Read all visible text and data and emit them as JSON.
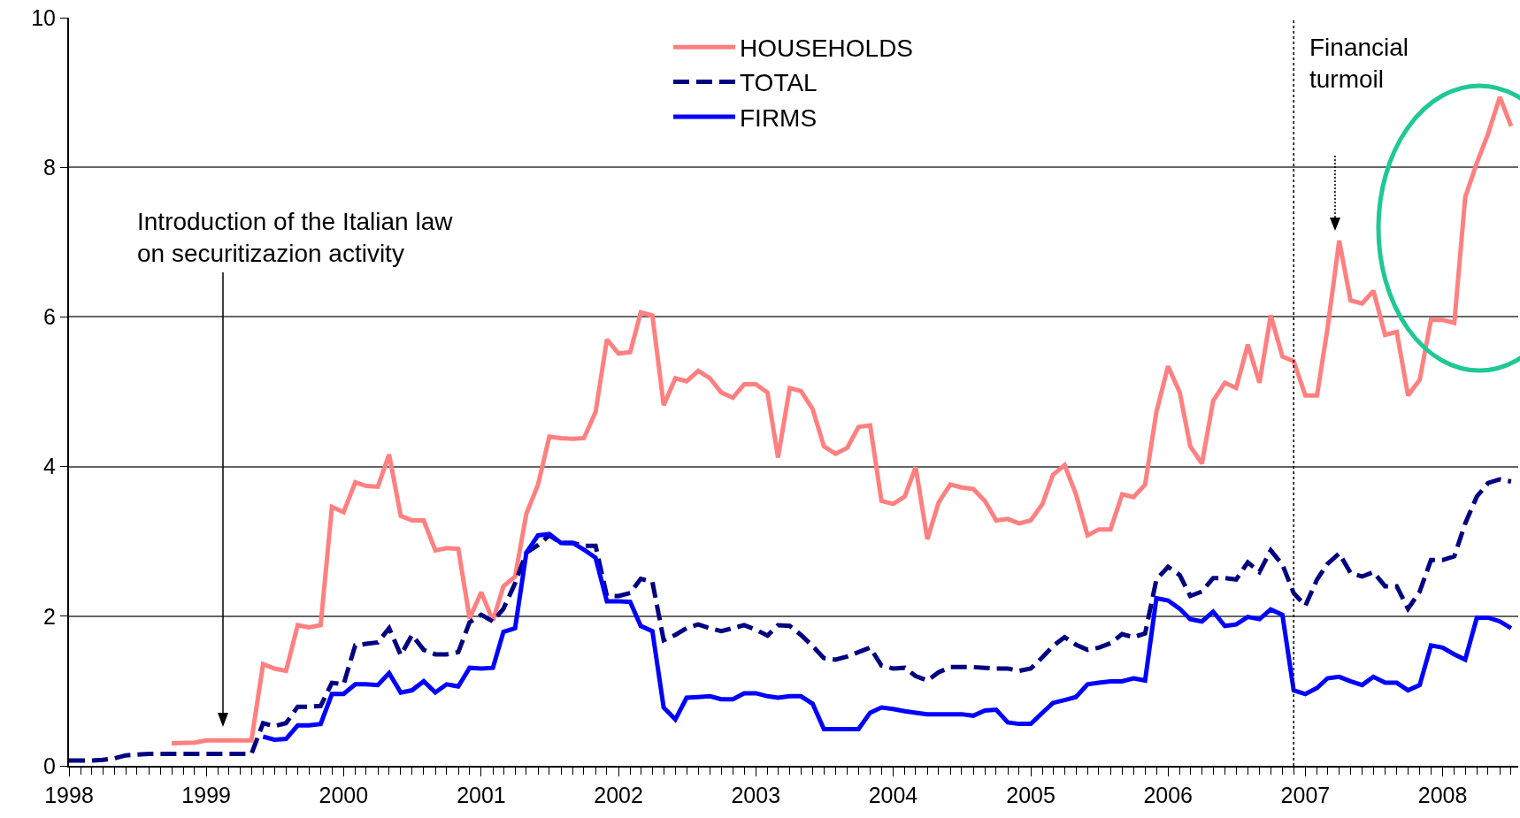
{
  "chart_data": {
    "type": "line",
    "series": [
      {
        "name": "HOUSEHOLDS",
        "color": "#ff8080",
        "line_style": "solid",
        "x": [
          "1998-10",
          "1998-12",
          "1999-01",
          "1999-02",
          "1999-03",
          "1999-04",
          "1999-05",
          "1999-06",
          "1999-07",
          "1999-08",
          "1999-09",
          "1999-10",
          "1999-11",
          "1999-12",
          "2000-01",
          "2000-02",
          "2000-03",
          "2000-04",
          "2000-05",
          "2000-06",
          "2000-07",
          "2000-08",
          "2000-09",
          "2000-10",
          "2000-11",
          "2000-12",
          "2001-01",
          "2001-02",
          "2001-03",
          "2001-04",
          "2001-05",
          "2001-06",
          "2001-07",
          "2001-08",
          "2001-09",
          "2001-10",
          "2001-11",
          "2001-12",
          "2002-01",
          "2002-02",
          "2002-03",
          "2002-04",
          "2002-05",
          "2002-06",
          "2002-07",
          "2002-08",
          "2002-09",
          "2002-10",
          "2002-11",
          "2002-12",
          "2003-01",
          "2003-02",
          "2003-03",
          "2003-04",
          "2003-05",
          "2003-06",
          "2003-07",
          "2003-08",
          "2003-09",
          "2003-10",
          "2003-11",
          "2003-12",
          "2004-01",
          "2004-02",
          "2004-03",
          "2004-04",
          "2004-05",
          "2004-06",
          "2004-07",
          "2004-08",
          "2004-09",
          "2004-10",
          "2004-11",
          "2004-12",
          "2005-01",
          "2005-02",
          "2005-03",
          "2005-04",
          "2005-05",
          "2005-06",
          "2005-07",
          "2005-08",
          "2005-09",
          "2005-10",
          "2005-11",
          "2005-12",
          "2006-01",
          "2006-02",
          "2006-03",
          "2006-04",
          "2006-05",
          "2006-06",
          "2006-07",
          "2006-08",
          "2006-09",
          "2006-10",
          "2006-11",
          "2006-12",
          "2007-01",
          "2007-02",
          "2007-03",
          "2007-04",
          "2007-05",
          "2007-06",
          "2007-07",
          "2007-08",
          "2007-09",
          "2007-10",
          "2007-11",
          "2007-12",
          "2008-01",
          "2008-02",
          "2008-03",
          "2008-04",
          "2008-05",
          "2008-06",
          "2008-07"
        ],
        "values": [
          0.3,
          0.31,
          0.34,
          0.34,
          0.34,
          0.34,
          0.34,
          1.36,
          1.3,
          1.27,
          1.88,
          1.85,
          1.88,
          3.46,
          3.39,
          3.79,
          3.74,
          3.73,
          4.16,
          3.34,
          3.28,
          3.28,
          2.88,
          2.91,
          2.9,
          1.97,
          2.32,
          1.94,
          2.4,
          2.53,
          3.37,
          3.76,
          4.4,
          4.38,
          4.37,
          4.38,
          4.73,
          5.7,
          5.51,
          5.53,
          6.06,
          6.02,
          4.82,
          5.18,
          5.14,
          5.28,
          5.18,
          4.99,
          4.92,
          5.1,
          5.1,
          4.99,
          4.12,
          5.05,
          5.01,
          4.77,
          4.27,
          4.17,
          4.25,
          4.53,
          4.55,
          3.54,
          3.5,
          3.6,
          3.99,
          3.03,
          3.52,
          3.76,
          3.72,
          3.7,
          3.54,
          3.28,
          3.3,
          3.24,
          3.28,
          3.5,
          3.89,
          4.02,
          3.63,
          3.08,
          3.16,
          3.16,
          3.63,
          3.59,
          3.76,
          4.73,
          5.34,
          4.99,
          4.27,
          4.04,
          4.88,
          5.12,
          5.05,
          5.63,
          5.12,
          6.02,
          5.47,
          5.41,
          4.95,
          4.95,
          5.85,
          7.02,
          6.22,
          6.18,
          6.35,
          5.76,
          5.8,
          4.95,
          5.16,
          5.96,
          5.96,
          5.92,
          7.6,
          8.06,
          8.45,
          8.94,
          8.55
        ]
      },
      {
        "name": "TOTAL",
        "color": "#000080",
        "line_style": "dashed",
        "x": [
          "1998-01",
          "1998-02",
          "1998-03",
          "1998-04",
          "1998-05",
          "1998-06",
          "1998-07",
          "1998-08",
          "1998-09",
          "1998-10",
          "1998-11",
          "1998-12",
          "1999-01",
          "1999-02",
          "1999-03",
          "1999-04",
          "1999-05",
          "1999-06",
          "1999-07",
          "1999-08",
          "1999-09",
          "1999-10",
          "1999-11",
          "1999-12",
          "2000-01",
          "2000-02",
          "2000-03",
          "2000-04",
          "2000-05",
          "2000-06",
          "2000-07",
          "2000-08",
          "2000-09",
          "2000-10",
          "2000-11",
          "2000-12",
          "2001-01",
          "2001-02",
          "2001-03",
          "2001-04",
          "2001-05",
          "2001-06",
          "2001-07",
          "2001-08",
          "2001-09",
          "2001-10",
          "2001-11",
          "2001-12",
          "2002-01",
          "2002-02",
          "2002-03",
          "2002-04",
          "2002-05",
          "2002-06",
          "2002-07",
          "2002-08",
          "2002-09",
          "2002-10",
          "2002-11",
          "2002-12",
          "2003-01",
          "2003-02",
          "2003-03",
          "2003-04",
          "2003-05",
          "2003-06",
          "2003-07",
          "2003-08",
          "2003-09",
          "2003-10",
          "2003-11",
          "2003-12",
          "2004-01",
          "2004-02",
          "2004-03",
          "2004-04",
          "2004-05",
          "2004-06",
          "2004-07",
          "2004-08",
          "2004-09",
          "2004-10",
          "2004-11",
          "2004-12",
          "2005-01",
          "2005-02",
          "2005-03",
          "2005-04",
          "2005-05",
          "2005-06",
          "2005-07",
          "2005-08",
          "2005-09",
          "2005-10",
          "2005-11",
          "2005-12",
          "2006-01",
          "2006-02",
          "2006-03",
          "2006-04",
          "2006-05",
          "2006-06",
          "2006-07",
          "2006-08",
          "2006-09",
          "2006-10",
          "2006-11",
          "2006-12",
          "2007-01",
          "2007-02",
          "2007-03",
          "2007-04",
          "2007-05",
          "2007-06",
          "2007-07",
          "2007-08",
          "2007-09",
          "2007-10",
          "2007-11",
          "2007-12",
          "2008-01",
          "2008-02",
          "2008-03",
          "2008-04",
          "2008-05",
          "2008-06",
          "2008-07"
        ],
        "values": [
          0.07,
          0.07,
          0.07,
          0.08,
          0.1,
          0.14,
          0.15,
          0.16,
          0.16,
          0.16,
          0.16,
          0.16,
          0.16,
          0.16,
          0.16,
          0.16,
          0.16,
          0.57,
          0.53,
          0.57,
          0.79,
          0.79,
          0.8,
          1.11,
          1.09,
          1.61,
          1.63,
          1.65,
          1.84,
          1.48,
          1.75,
          1.55,
          1.49,
          1.49,
          1.52,
          1.92,
          2.02,
          1.93,
          2.1,
          2.44,
          2.85,
          2.95,
          3.08,
          2.98,
          2.98,
          2.94,
          2.94,
          2.27,
          2.27,
          2.31,
          2.5,
          2.46,
          1.68,
          1.75,
          1.84,
          1.89,
          1.84,
          1.8,
          1.84,
          1.88,
          1.82,
          1.74,
          1.88,
          1.87,
          1.75,
          1.6,
          1.44,
          1.42,
          1.46,
          1.52,
          1.58,
          1.34,
          1.3,
          1.31,
          1.2,
          1.14,
          1.25,
          1.32,
          1.32,
          1.32,
          1.31,
          1.3,
          1.3,
          1.27,
          1.3,
          1.45,
          1.6,
          1.72,
          1.62,
          1.55,
          1.58,
          1.64,
          1.76,
          1.72,
          1.77,
          2.49,
          2.66,
          2.55,
          2.27,
          2.33,
          2.51,
          2.51,
          2.49,
          2.72,
          2.59,
          2.88,
          2.69,
          2.31,
          2.14,
          2.49,
          2.7,
          2.84,
          2.58,
          2.53,
          2.59,
          2.4,
          2.4,
          2.1,
          2.33,
          2.75,
          2.75,
          2.8,
          3.24,
          3.6,
          3.78,
          3.83,
          3.8
        ]
      },
      {
        "name": "FIRMS",
        "color": "#0000ff",
        "line_style": "solid",
        "x": [
          "1999-06",
          "1999-07",
          "1999-08",
          "1999-09",
          "1999-10",
          "1999-11",
          "1999-12",
          "2000-01",
          "2000-02",
          "2000-03",
          "2000-04",
          "2000-05",
          "2000-06",
          "2000-07",
          "2000-08",
          "2000-09",
          "2000-10",
          "2000-11",
          "2000-12",
          "2001-01",
          "2001-02",
          "2001-03",
          "2001-04",
          "2001-05",
          "2001-06",
          "2001-07",
          "2001-08",
          "2001-09",
          "2001-10",
          "2001-11",
          "2001-12",
          "2002-01",
          "2002-02",
          "2002-03",
          "2002-04",
          "2002-05",
          "2002-06",
          "2002-07",
          "2002-08",
          "2002-09",
          "2002-10",
          "2002-11",
          "2002-12",
          "2003-01",
          "2003-02",
          "2003-03",
          "2003-04",
          "2003-05",
          "2003-06",
          "2003-07",
          "2003-08",
          "2003-09",
          "2003-10",
          "2003-11",
          "2003-12",
          "2004-01",
          "2004-02",
          "2004-03",
          "2004-04",
          "2004-05",
          "2004-06",
          "2004-07",
          "2004-08",
          "2004-09",
          "2004-10",
          "2004-11",
          "2004-12",
          "2005-01",
          "2005-02",
          "2005-03",
          "2005-04",
          "2005-05",
          "2005-06",
          "2005-07",
          "2005-08",
          "2005-09",
          "2005-10",
          "2005-11",
          "2005-12",
          "2006-01",
          "2006-02",
          "2006-03",
          "2006-04",
          "2006-05",
          "2006-06",
          "2006-07",
          "2006-08",
          "2006-09",
          "2006-10",
          "2006-11",
          "2006-12",
          "2007-01",
          "2007-02",
          "2007-03",
          "2007-04",
          "2007-05",
          "2007-06",
          "2007-07",
          "2007-08",
          "2007-09",
          "2007-10",
          "2007-11",
          "2007-12",
          "2008-01",
          "2008-02",
          "2008-03",
          "2008-04",
          "2008-05",
          "2008-06",
          "2008-07"
        ],
        "values": [
          0.39,
          0.35,
          0.36,
          0.54,
          0.54,
          0.56,
          0.96,
          0.96,
          1.09,
          1.09,
          1.08,
          1.24,
          0.98,
          1.01,
          1.13,
          0.98,
          1.09,
          1.06,
          1.31,
          1.3,
          1.31,
          1.79,
          1.84,
          2.85,
          3.08,
          3.1,
          2.98,
          2.98,
          2.89,
          2.78,
          2.2,
          2.2,
          2.19,
          1.87,
          1.8,
          0.78,
          0.62,
          0.91,
          0.92,
          0.93,
          0.89,
          0.89,
          0.97,
          0.97,
          0.93,
          0.91,
          0.93,
          0.93,
          0.83,
          0.49,
          0.49,
          0.49,
          0.49,
          0.71,
          0.78,
          0.76,
          0.73,
          0.71,
          0.69,
          0.69,
          0.69,
          0.69,
          0.67,
          0.74,
          0.75,
          0.58,
          0.56,
          0.56,
          0.71,
          0.84,
          0.88,
          0.92,
          1.09,
          1.11,
          1.13,
          1.13,
          1.17,
          1.14,
          2.24,
          2.21,
          2.1,
          1.96,
          1.93,
          2.06,
          1.87,
          1.89,
          1.99,
          1.96,
          2.09,
          2.02,
          1.01,
          0.96,
          1.04,
          1.17,
          1.19,
          1.13,
          1.08,
          1.19,
          1.11,
          1.11,
          1.01,
          1.08,
          1.61,
          1.58,
          1.49,
          1.42,
          1.98,
          1.98,
          1.93,
          1.84
        ]
      }
    ],
    "xlim": [
      "1998-01-01",
      "2008-07-20"
    ],
    "xticks": [
      "1998",
      "1999",
      "2000",
      "2001",
      "2002",
      "2003",
      "2004",
      "2005",
      "2006",
      "2007",
      "2008"
    ],
    "ylim": [
      0,
      10
    ],
    "yticks": [
      0,
      2,
      4,
      6,
      8,
      10
    ],
    "grid": "y",
    "legend": "top",
    "marker": "none",
    "ref_lines": [
      {
        "axis": "x",
        "value": "2006-12-01",
        "color": "#000000",
        "line_style": "dotted"
      }
    ],
    "annotations": [
      "Introduction of the Italian law\non securitizazion activity",
      "Financial\nturmoil"
    ]
  }
}
